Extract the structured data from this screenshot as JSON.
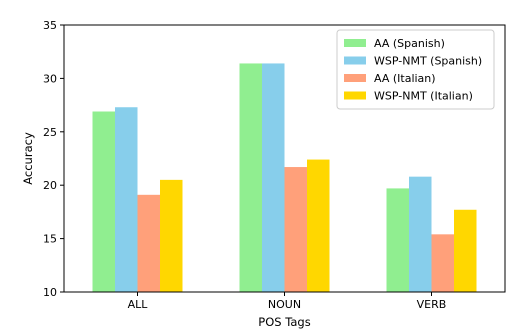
{
  "chart_data": {
    "type": "bar",
    "title": "",
    "xlabel": "POS Tags",
    "ylabel": "Accuracy",
    "ylim": [
      10,
      35
    ],
    "yticks": [
      10,
      15,
      20,
      25,
      30,
      35
    ],
    "categories": [
      "ALL",
      "NOUN",
      "VERB"
    ],
    "series": [
      {
        "name": "AA (Spanish)",
        "color": "#90ee90",
        "values": [
          26.9,
          31.4,
          19.7
        ]
      },
      {
        "name": "WSP-NMT (Spanish)",
        "color": "#87ceeb",
        "values": [
          27.3,
          31.4,
          20.8
        ]
      },
      {
        "name": "AA (Italian)",
        "color": "#ffa07a",
        "values": [
          19.1,
          21.7,
          15.4
        ]
      },
      {
        "name": "WSP-NMT (Italian)",
        "color": "#ffd700",
        "values": [
          20.5,
          22.4,
          17.7
        ]
      }
    ],
    "legend_position": "top-right",
    "grid": false
  }
}
